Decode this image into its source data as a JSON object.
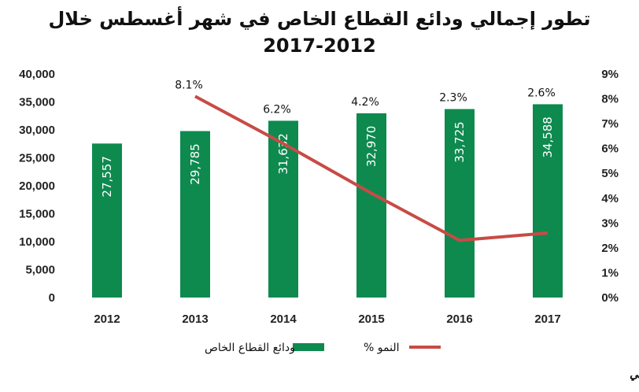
{
  "chart_data": {
    "type": "bar",
    "title": "تطور إجمالي ودائع القطاع الخاص في شهر أغسطس خلال",
    "subtitle": "2017-2012",
    "categories": [
      "2012",
      "2013",
      "2014",
      "2015",
      "2016",
      "2017"
    ],
    "series": [
      {
        "name": "ودائع القطاع الخاص",
        "type": "bar",
        "axis": "left",
        "color": "#0e8a4f",
        "values": [
          27557,
          29785,
          31632,
          32970,
          33725,
          34588
        ],
        "labels": [
          "27,557",
          "29,785",
          "31,632",
          "32,970",
          "33,725",
          "34,588"
        ]
      },
      {
        "name": "% النمو",
        "type": "line",
        "axis": "right",
        "color": "#c84b45",
        "values": [
          null,
          8.1,
          6.2,
          4.2,
          2.3,
          2.6
        ],
        "labels": [
          "",
          "8.1%",
          "6.2%",
          "4.2%",
          "2.3%",
          "2.6%"
        ]
      }
    ],
    "yleft": {
      "min": 0,
      "max": 40000,
      "ticks": [
        "0",
        "5,000",
        "10,000",
        "15,000",
        "20,000",
        "25,000",
        "30,000",
        "35,000",
        "40,000"
      ]
    },
    "yright": {
      "min": 0,
      "max": 9,
      "ticks": [
        "0%",
        "1%",
        "2%",
        "3%",
        "4%",
        "5%",
        "6%",
        "7%",
        "8%",
        "9%"
      ]
    },
    "grid": false,
    "legend_position": "bottom"
  },
  "source": "المصدر: بنك الكويت المركزي، بيت التمويل الكويتي"
}
